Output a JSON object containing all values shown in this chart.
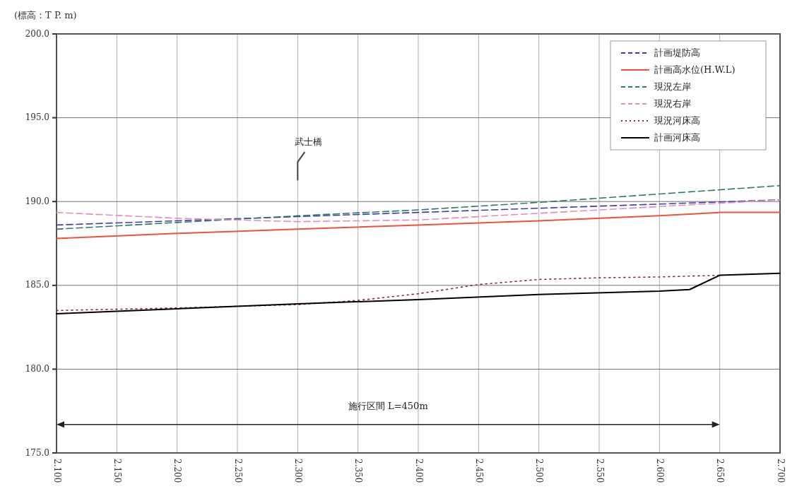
{
  "chart_data": {
    "type": "line",
    "ylabel": "(標高：T P. m)",
    "series": [
      {
        "name": "計画堤防高",
        "color": "#3c3ca8",
        "line_style": "dashed",
        "x": [
          2.1,
          2.2,
          2.3,
          2.4,
          2.5,
          2.6,
          2.7
        ],
        "values": [
          188.6,
          188.85,
          189.1,
          189.35,
          189.6,
          189.85,
          190.1
        ]
      },
      {
        "name": "計画高水位(H.W.L)",
        "color": "#f0503c",
        "line_style": "solid",
        "x": [
          2.1,
          2.2,
          2.3,
          2.4,
          2.5,
          2.6,
          2.65,
          2.7
        ],
        "values": [
          187.8,
          188.1,
          188.35,
          188.6,
          188.85,
          189.15,
          189.35,
          189.35
        ]
      },
      {
        "name": "現況左岸",
        "color": "#2a7a6a",
        "line_style": "dashed",
        "x": [
          2.1,
          2.2,
          2.3,
          2.4,
          2.5,
          2.6,
          2.7
        ],
        "values": [
          188.35,
          188.75,
          189.15,
          189.5,
          189.95,
          190.45,
          190.95
        ]
      },
      {
        "name": "現況右岸",
        "color": "#e08cc0",
        "line_style": "dashed",
        "x": [
          2.1,
          2.2,
          2.3,
          2.4,
          2.5,
          2.6,
          2.7
        ],
        "values": [
          189.35,
          189.0,
          188.8,
          188.9,
          189.3,
          189.7,
          190.1
        ]
      },
      {
        "name": "現況河床高",
        "color": "#8a2a2a",
        "line_style": "dotted",
        "x": [
          2.1,
          2.2,
          2.3,
          2.35,
          2.4,
          2.45,
          2.5,
          2.55,
          2.6,
          2.65
        ],
        "values": [
          183.5,
          183.65,
          183.85,
          184.1,
          184.5,
          185.05,
          185.35,
          185.45,
          185.5,
          185.6
        ]
      },
      {
        "name": "計画河床高",
        "color": "#000000",
        "line_style": "solid",
        "x": [
          2.1,
          2.2,
          2.3,
          2.4,
          2.5,
          2.6,
          2.625,
          2.65,
          2.7
        ],
        "values": [
          183.3,
          183.6,
          183.9,
          184.15,
          184.45,
          184.65,
          184.75,
          185.6,
          185.72
        ]
      }
    ],
    "xlim": [
      2.1,
      2.7
    ],
    "xticks": [
      {
        "value": 2.1,
        "label": "2.100"
      },
      {
        "value": 2.15,
        "label": "2.150"
      },
      {
        "value": 2.2,
        "label": "2.200"
      },
      {
        "value": 2.25,
        "label": "2.250"
      },
      {
        "value": 2.3,
        "label": "2.300"
      },
      {
        "value": 2.35,
        "label": "2.350"
      },
      {
        "value": 2.4,
        "label": "2.400"
      },
      {
        "value": 2.45,
        "label": "2.450"
      },
      {
        "value": 2.5,
        "label": "2.500"
      },
      {
        "value": 2.55,
        "label": "2.550"
      },
      {
        "value": 2.6,
        "label": "2.600"
      },
      {
        "value": 2.65,
        "label": "2.650"
      },
      {
        "value": 2.7,
        "label": "2.700"
      }
    ],
    "ylim": [
      175,
      200
    ],
    "yticks": [
      {
        "value": 175,
        "label": "175.0"
      },
      {
        "value": 180,
        "label": "180.0"
      },
      {
        "value": 185,
        "label": "185.0"
      },
      {
        "value": 190,
        "label": "190.0"
      },
      {
        "value": 195,
        "label": "195.0"
      },
      {
        "value": 200,
        "label": "200.0"
      }
    ],
    "grid": true,
    "legend": "top right",
    "annotations": [
      "武士橋",
      "施行区間 L=450m"
    ]
  }
}
